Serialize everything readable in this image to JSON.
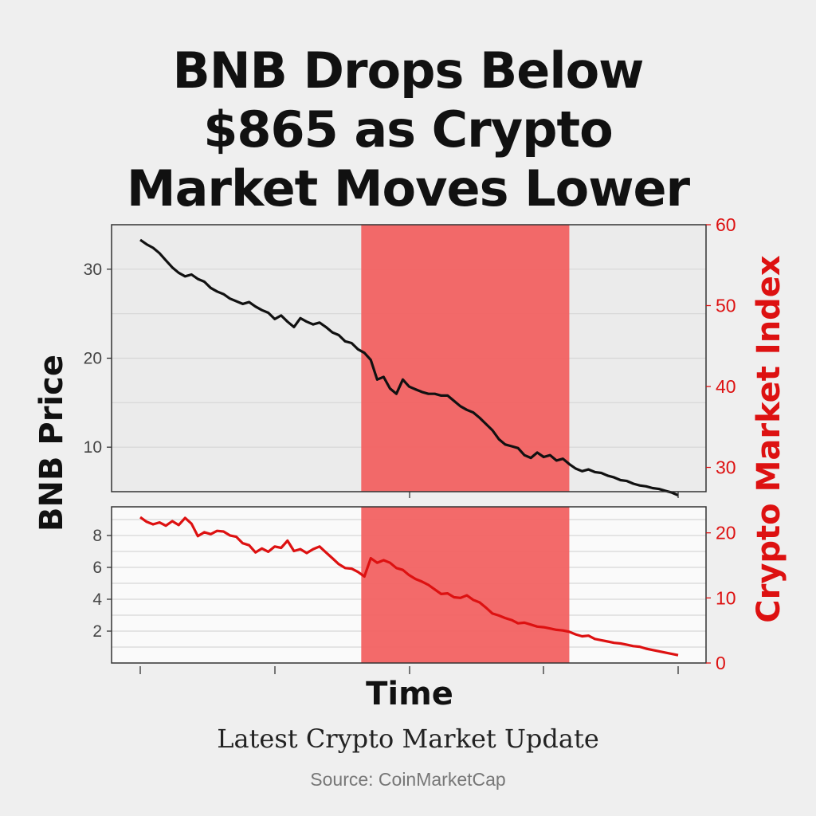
{
  "title_lines": [
    "BNB Drops Below",
    "$865 as Crypto",
    "Market Moves Lower"
  ],
  "subtitle": "Latest Crypto Market Update",
  "source": "Source: CoinMarketCap",
  "colors": {
    "price": "#111111",
    "index": "#dd1111",
    "highlight": "#f26262",
    "grid": "#d6d6d6"
  },
  "chart_data": [
    {
      "type": "line",
      "panel": "top",
      "ylabel": "BNB Price",
      "ylabel_right": "Crypto Market Index",
      "xlabel": "",
      "yticks": [
        10,
        20,
        30
      ],
      "yticks_right": [
        30,
        40,
        50,
        60
      ],
      "ylim": [
        5,
        35
      ],
      "ylim_right": [
        27,
        60
      ],
      "grid": true,
      "highlight_x": [
        0.42,
        0.77
      ],
      "series": [
        {
          "values": [
            33.3,
            32.8,
            32.4,
            31.8,
            31.0,
            30.2,
            29.6,
            29.2,
            29.4,
            28.9,
            28.6,
            27.9,
            27.5,
            27.2,
            26.7,
            26.4,
            26.1,
            26.3,
            25.8,
            25.4,
            25.1,
            24.4,
            24.8,
            24.1,
            23.5,
            24.5,
            24.1,
            23.8,
            24.0,
            23.5,
            22.9,
            22.6,
            21.9,
            21.7,
            21.0,
            20.6,
            19.8,
            17.6,
            17.9,
            16.6,
            16.0,
            17.6,
            16.8,
            16.5,
            16.2,
            16.0,
            16.0,
            15.8,
            15.8,
            15.2,
            14.6,
            14.2,
            13.9,
            13.3,
            12.6,
            11.9,
            10.9,
            10.3,
            10.1,
            9.9,
            9.1,
            8.8,
            9.4,
            8.9,
            9.1,
            8.5,
            8.7,
            8.1,
            7.6,
            7.3,
            7.5,
            7.2,
            7.1,
            6.8,
            6.6,
            6.3,
            6.2,
            5.9,
            5.7,
            5.6,
            5.4,
            5.3,
            5.1,
            4.9,
            4.6
          ]
        }
      ]
    },
    {
      "type": "line",
      "panel": "bottom",
      "xlabel": "Time",
      "ylabel": "BNB Price",
      "ylabel_right": "Crypto Market Index",
      "yticks": [
        2,
        4,
        6,
        8
      ],
      "yticks_right": [
        0,
        10,
        20
      ],
      "ylim": [
        0,
        9.8
      ],
      "ylim_right": [
        0,
        24
      ],
      "grid": true,
      "highlight_x": [
        0.42,
        0.77
      ],
      "series": [
        {
          "values": [
            22.4,
            21.7,
            21.3,
            21.6,
            21.1,
            21.8,
            21.2,
            22.3,
            21.4,
            19.5,
            20.1,
            19.8,
            20.3,
            20.2,
            19.6,
            19.4,
            18.4,
            18.1,
            17.0,
            17.6,
            17.1,
            17.9,
            17.7,
            18.8,
            17.2,
            17.5,
            16.9,
            17.5,
            17.9,
            17.0,
            16.1,
            15.2,
            14.6,
            14.5,
            14.0,
            13.3,
            16.1,
            15.4,
            15.8,
            15.4,
            14.6,
            14.3,
            13.5,
            12.9,
            12.5,
            12.0,
            11.3,
            10.6,
            10.7,
            10.1,
            10.0,
            10.4,
            9.7,
            9.3,
            8.5,
            7.6,
            7.3,
            6.9,
            6.6,
            6.1,
            6.2,
            5.9,
            5.6,
            5.5,
            5.3,
            5.1,
            5.0,
            4.8,
            4.4,
            4.1,
            4.2,
            3.7,
            3.5,
            3.3,
            3.1,
            3.0,
            2.8,
            2.6,
            2.5,
            2.2,
            2.0,
            1.8,
            1.6,
            1.4,
            1.2
          ]
        }
      ]
    }
  ]
}
